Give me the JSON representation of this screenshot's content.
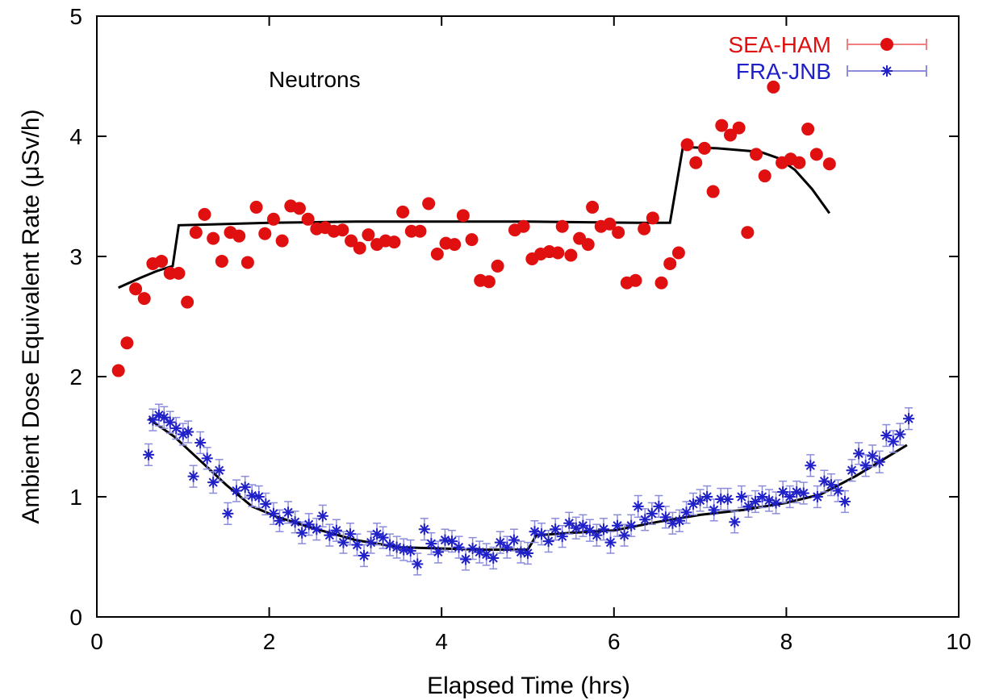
{
  "chart_data": {
    "type": "scatter",
    "xlabel": "Elapsed Time    (hrs)",
    "ylabel": "Ambient Dose Equivalent Rate  (μSv/h)",
    "xlim": [
      0,
      10
    ],
    "ylim": [
      0,
      5
    ],
    "x_ticks": [
      "0",
      "2",
      "4",
      "6",
      "8",
      "10"
    ],
    "y_ticks": [
      "0",
      "1",
      "2",
      "3",
      "4",
      "5"
    ],
    "annotation": "Neutrons",
    "grid": false,
    "legend_position": "top-right",
    "series": [
      {
        "name": "SEA-HAM",
        "color": "#e01010",
        "marker": "filled-circle",
        "points": [
          [
            0.25,
            2.05
          ],
          [
            0.35,
            2.28
          ],
          [
            0.45,
            2.73
          ],
          [
            0.55,
            2.65
          ],
          [
            0.65,
            2.94
          ],
          [
            0.75,
            2.96
          ],
          [
            0.85,
            2.86
          ],
          [
            0.95,
            2.86
          ],
          [
            1.05,
            2.62
          ],
          [
            1.15,
            3.2
          ],
          [
            1.25,
            3.35
          ],
          [
            1.35,
            3.15
          ],
          [
            1.45,
            2.96
          ],
          [
            1.55,
            3.2
          ],
          [
            1.65,
            3.17
          ],
          [
            1.75,
            2.95
          ],
          [
            1.85,
            3.41
          ],
          [
            1.95,
            3.19
          ],
          [
            2.05,
            3.31
          ],
          [
            2.15,
            3.13
          ],
          [
            2.25,
            3.42
          ],
          [
            2.35,
            3.4
          ],
          [
            2.45,
            3.31
          ],
          [
            2.55,
            3.23
          ],
          [
            2.65,
            3.24
          ],
          [
            2.75,
            3.21
          ],
          [
            2.85,
            3.22
          ],
          [
            2.95,
            3.13
          ],
          [
            3.05,
            3.07
          ],
          [
            3.15,
            3.18
          ],
          [
            3.25,
            3.1
          ],
          [
            3.35,
            3.13
          ],
          [
            3.45,
            3.12
          ],
          [
            3.55,
            3.37
          ],
          [
            3.65,
            3.21
          ],
          [
            3.75,
            3.21
          ],
          [
            3.85,
            3.44
          ],
          [
            3.95,
            3.02
          ],
          [
            4.05,
            3.11
          ],
          [
            4.15,
            3.1
          ],
          [
            4.25,
            3.34
          ],
          [
            4.35,
            3.14
          ],
          [
            4.45,
            2.8
          ],
          [
            4.55,
            2.79
          ],
          [
            4.65,
            2.92
          ],
          [
            4.85,
            3.22
          ],
          [
            4.95,
            3.25
          ],
          [
            5.05,
            2.98
          ],
          [
            5.15,
            3.02
          ],
          [
            5.25,
            3.04
          ],
          [
            5.35,
            3.03
          ],
          [
            5.4,
            3.25
          ],
          [
            5.5,
            3.01
          ],
          [
            5.6,
            3.15
          ],
          [
            5.7,
            3.1
          ],
          [
            5.75,
            3.41
          ],
          [
            5.85,
            3.25
          ],
          [
            5.95,
            3.27
          ],
          [
            6.05,
            3.2
          ],
          [
            6.15,
            2.78
          ],
          [
            6.25,
            2.8
          ],
          [
            6.35,
            3.23
          ],
          [
            6.45,
            3.32
          ],
          [
            6.55,
            2.78
          ],
          [
            6.65,
            2.94
          ],
          [
            6.75,
            3.03
          ],
          [
            6.85,
            3.93
          ],
          [
            6.95,
            3.78
          ],
          [
            7.05,
            3.9
          ],
          [
            7.15,
            3.54
          ],
          [
            7.25,
            4.09
          ],
          [
            7.35,
            4.01
          ],
          [
            7.45,
            4.07
          ],
          [
            7.55,
            3.2
          ],
          [
            7.65,
            3.85
          ],
          [
            7.75,
            3.67
          ],
          [
            7.85,
            4.41
          ],
          [
            7.95,
            3.78
          ],
          [
            8.05,
            3.81
          ],
          [
            8.15,
            3.78
          ],
          [
            8.25,
            4.06
          ],
          [
            8.35,
            3.85
          ],
          [
            8.5,
            3.77
          ]
        ],
        "fit_line": [
          [
            0.25,
            2.74
          ],
          [
            0.5,
            2.82
          ],
          [
            0.7,
            2.88
          ],
          [
            0.88,
            2.92
          ],
          [
            0.95,
            3.26
          ],
          [
            1.5,
            3.27
          ],
          [
            2.0,
            3.28
          ],
          [
            3.0,
            3.29
          ],
          [
            5.0,
            3.29
          ],
          [
            6.3,
            3.28
          ],
          [
            6.65,
            3.28
          ],
          [
            6.8,
            3.91
          ],
          [
            7.2,
            3.9
          ],
          [
            7.7,
            3.87
          ],
          [
            7.9,
            3.82
          ],
          [
            8.1,
            3.72
          ],
          [
            8.3,
            3.56
          ],
          [
            8.5,
            3.36
          ]
        ]
      },
      {
        "name": "FRA-JNB",
        "color": "#2020c8",
        "marker": "asterisk",
        "points": [
          [
            0.6,
            1.35
          ],
          [
            0.65,
            1.64
          ],
          [
            0.72,
            1.68
          ],
          [
            0.78,
            1.66
          ],
          [
            0.85,
            1.62
          ],
          [
            0.92,
            1.57
          ],
          [
            1.0,
            1.52
          ],
          [
            1.06,
            1.54
          ],
          [
            1.12,
            1.17
          ],
          [
            1.2,
            1.45
          ],
          [
            1.28,
            1.32
          ],
          [
            1.35,
            1.12
          ],
          [
            1.42,
            1.22
          ],
          [
            1.52,
            0.86
          ],
          [
            1.62,
            1.05
          ],
          [
            1.72,
            1.08
          ],
          [
            1.8,
            1.01
          ],
          [
            1.88,
            1.0
          ],
          [
            1.96,
            0.94
          ],
          [
            2.05,
            0.86
          ],
          [
            2.12,
            0.8
          ],
          [
            2.22,
            0.87
          ],
          [
            2.3,
            0.79
          ],
          [
            2.38,
            0.7
          ],
          [
            2.46,
            0.77
          ],
          [
            2.55,
            0.73
          ],
          [
            2.62,
            0.84
          ],
          [
            2.7,
            0.68
          ],
          [
            2.78,
            0.72
          ],
          [
            2.86,
            0.62
          ],
          [
            2.94,
            0.69
          ],
          [
            3.02,
            0.6
          ],
          [
            3.1,
            0.51
          ],
          [
            3.18,
            0.62
          ],
          [
            3.25,
            0.69
          ],
          [
            3.32,
            0.66
          ],
          [
            3.4,
            0.6
          ],
          [
            3.48,
            0.58
          ],
          [
            3.56,
            0.56
          ],
          [
            3.64,
            0.55
          ],
          [
            3.72,
            0.44
          ],
          [
            3.8,
            0.73
          ],
          [
            3.88,
            0.61
          ],
          [
            3.96,
            0.54
          ],
          [
            4.04,
            0.64
          ],
          [
            4.12,
            0.63
          ],
          [
            4.2,
            0.58
          ],
          [
            4.28,
            0.48
          ],
          [
            4.36,
            0.57
          ],
          [
            4.44,
            0.54
          ],
          [
            4.52,
            0.52
          ],
          [
            4.6,
            0.49
          ],
          [
            4.68,
            0.62
          ],
          [
            4.76,
            0.58
          ],
          [
            4.84,
            0.64
          ],
          [
            4.92,
            0.54
          ],
          [
            5.0,
            0.53
          ],
          [
            5.08,
            0.71
          ],
          [
            5.16,
            0.69
          ],
          [
            5.24,
            0.63
          ],
          [
            5.32,
            0.73
          ],
          [
            5.4,
            0.67
          ],
          [
            5.48,
            0.78
          ],
          [
            5.56,
            0.74
          ],
          [
            5.64,
            0.76
          ],
          [
            5.72,
            0.72
          ],
          [
            5.8,
            0.68
          ],
          [
            5.88,
            0.73
          ],
          [
            5.96,
            0.62
          ],
          [
            6.04,
            0.76
          ],
          [
            6.12,
            0.68
          ],
          [
            6.2,
            0.76
          ],
          [
            6.28,
            0.92
          ],
          [
            6.36,
            0.81
          ],
          [
            6.44,
            0.86
          ],
          [
            6.52,
            0.92
          ],
          [
            6.6,
            0.83
          ],
          [
            6.68,
            0.78
          ],
          [
            6.76,
            0.8
          ],
          [
            6.84,
            0.87
          ],
          [
            6.92,
            0.94
          ],
          [
            7.0,
            0.97
          ],
          [
            7.08,
            1.0
          ],
          [
            7.16,
            0.89
          ],
          [
            7.24,
            0.98
          ],
          [
            7.32,
            0.98
          ],
          [
            7.4,
            0.79
          ],
          [
            7.48,
            1.0
          ],
          [
            7.56,
            0.92
          ],
          [
            7.64,
            0.96
          ],
          [
            7.72,
            1.0
          ],
          [
            7.8,
            0.97
          ],
          [
            7.88,
            0.95
          ],
          [
            7.96,
            1.04
          ],
          [
            8.04,
            1.0
          ],
          [
            8.12,
            1.04
          ],
          [
            8.2,
            1.03
          ],
          [
            8.28,
            1.26
          ],
          [
            8.36,
            1.0
          ],
          [
            8.44,
            1.13
          ],
          [
            8.52,
            1.1
          ],
          [
            8.6,
            1.05
          ],
          [
            8.68,
            0.96
          ],
          [
            8.76,
            1.22
          ],
          [
            8.84,
            1.36
          ],
          [
            8.92,
            1.26
          ],
          [
            9.0,
            1.34
          ],
          [
            9.08,
            1.29
          ],
          [
            9.16,
            1.51
          ],
          [
            9.24,
            1.46
          ],
          [
            9.32,
            1.52
          ],
          [
            9.42,
            1.65
          ]
        ],
        "fit_line": [
          [
            0.6,
            1.65
          ],
          [
            0.9,
            1.5
          ],
          [
            1.2,
            1.3
          ],
          [
            1.5,
            1.1
          ],
          [
            1.8,
            0.92
          ],
          [
            2.1,
            0.83
          ],
          [
            2.5,
            0.74
          ],
          [
            3.0,
            0.64
          ],
          [
            3.5,
            0.58
          ],
          [
            4.0,
            0.57
          ],
          [
            4.5,
            0.56
          ],
          [
            5.0,
            0.56
          ],
          [
            5.1,
            0.68
          ],
          [
            5.5,
            0.7
          ],
          [
            6.0,
            0.72
          ],
          [
            6.5,
            0.79
          ],
          [
            7.0,
            0.85
          ],
          [
            7.5,
            0.89
          ],
          [
            8.0,
            0.95
          ],
          [
            8.4,
            1.02
          ],
          [
            8.8,
            1.17
          ],
          [
            9.1,
            1.3
          ],
          [
            9.4,
            1.43
          ]
        ],
        "error": 0.09
      }
    ]
  }
}
